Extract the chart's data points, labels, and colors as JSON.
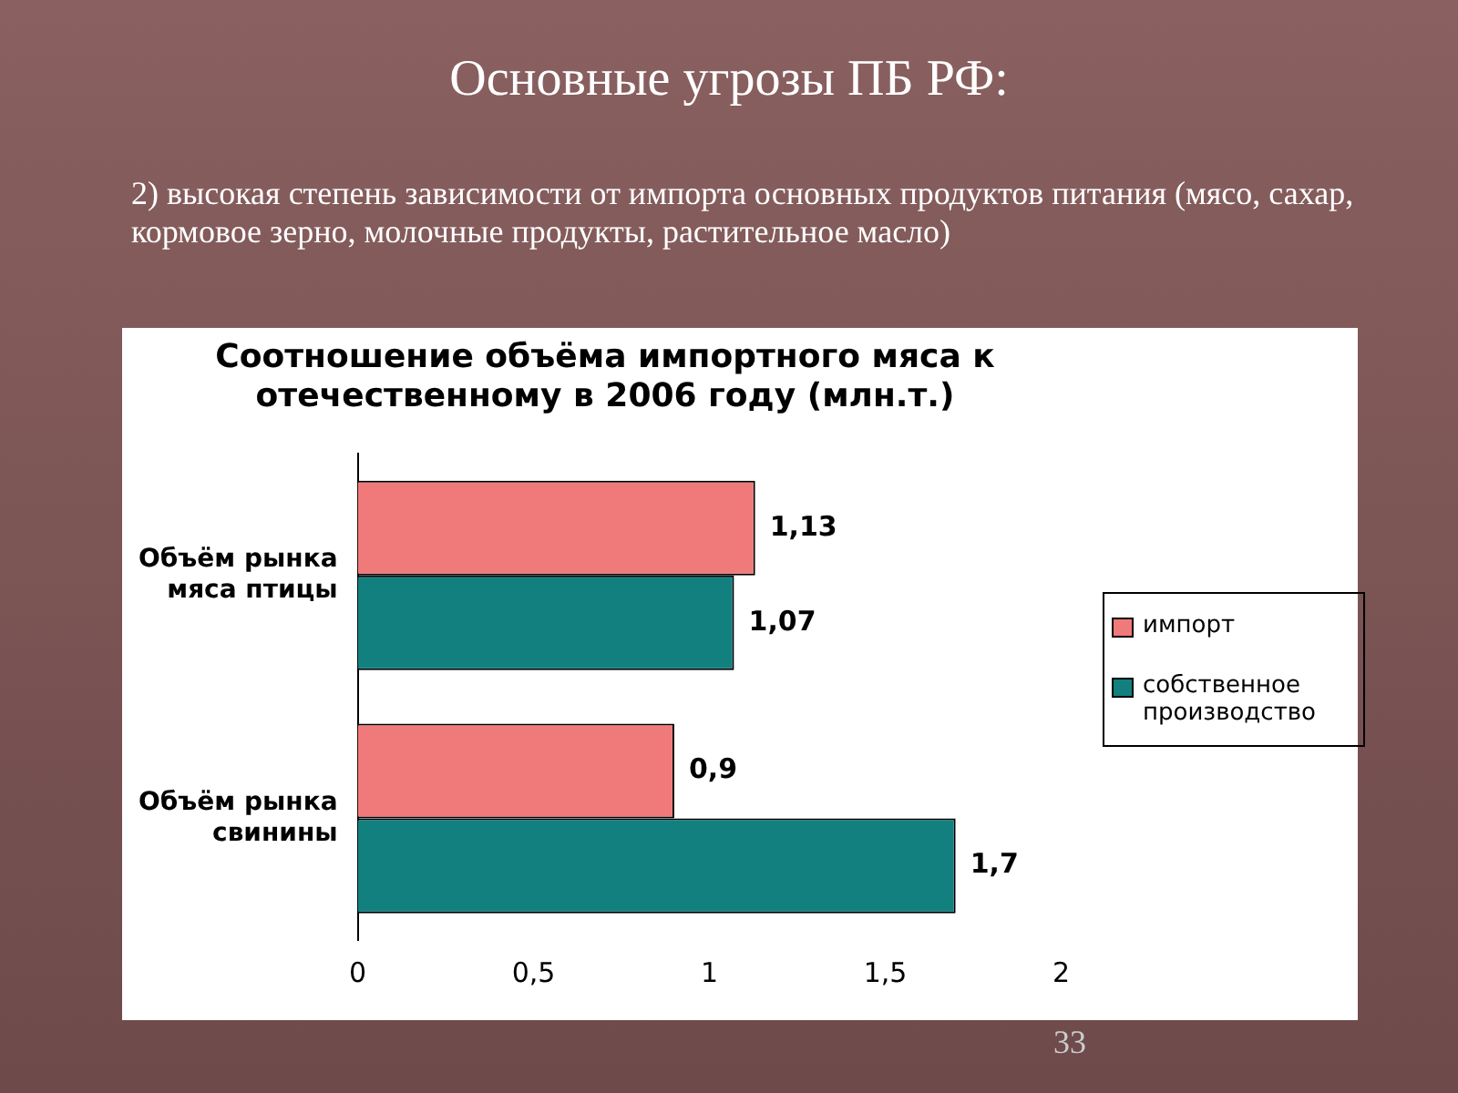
{
  "chart_data": {
    "type": "bar",
    "orientation": "horizontal",
    "title": "Соотношение объёма импортного мяса к отечественному в 2006 году (млн.т.)",
    "annotations": [
      "Основные угрозы ПБ РФ:",
      "2) высокая степень зависимости от импорта основных продуктов питания (мясо, сахар, кормовое зерно, молочные продукты, растительное масло)",
      "33"
    ],
    "categories": [
      "Объём рынка мяса птицы",
      "Объём рынка свинины"
    ],
    "series": [
      {
        "name": "импорт",
        "color": "#f07a7a",
        "values": [
          1.13,
          0.9
        ],
        "value_labels": [
          "1,13",
          "0,9"
        ]
      },
      {
        "name": "собственное производство",
        "color": "#138080",
        "values": [
          1.07,
          1.7
        ],
        "value_labels": [
          "1,07",
          "1,7"
        ]
      }
    ],
    "xlim": [
      0,
      2
    ],
    "xticks": [
      0,
      {
        "value": 0.5,
        "label": "0,5"
      },
      1,
      {
        "value": 1.5,
        "label": "1,5"
      },
      2
    ],
    "grid": false,
    "legend": "right"
  }
}
